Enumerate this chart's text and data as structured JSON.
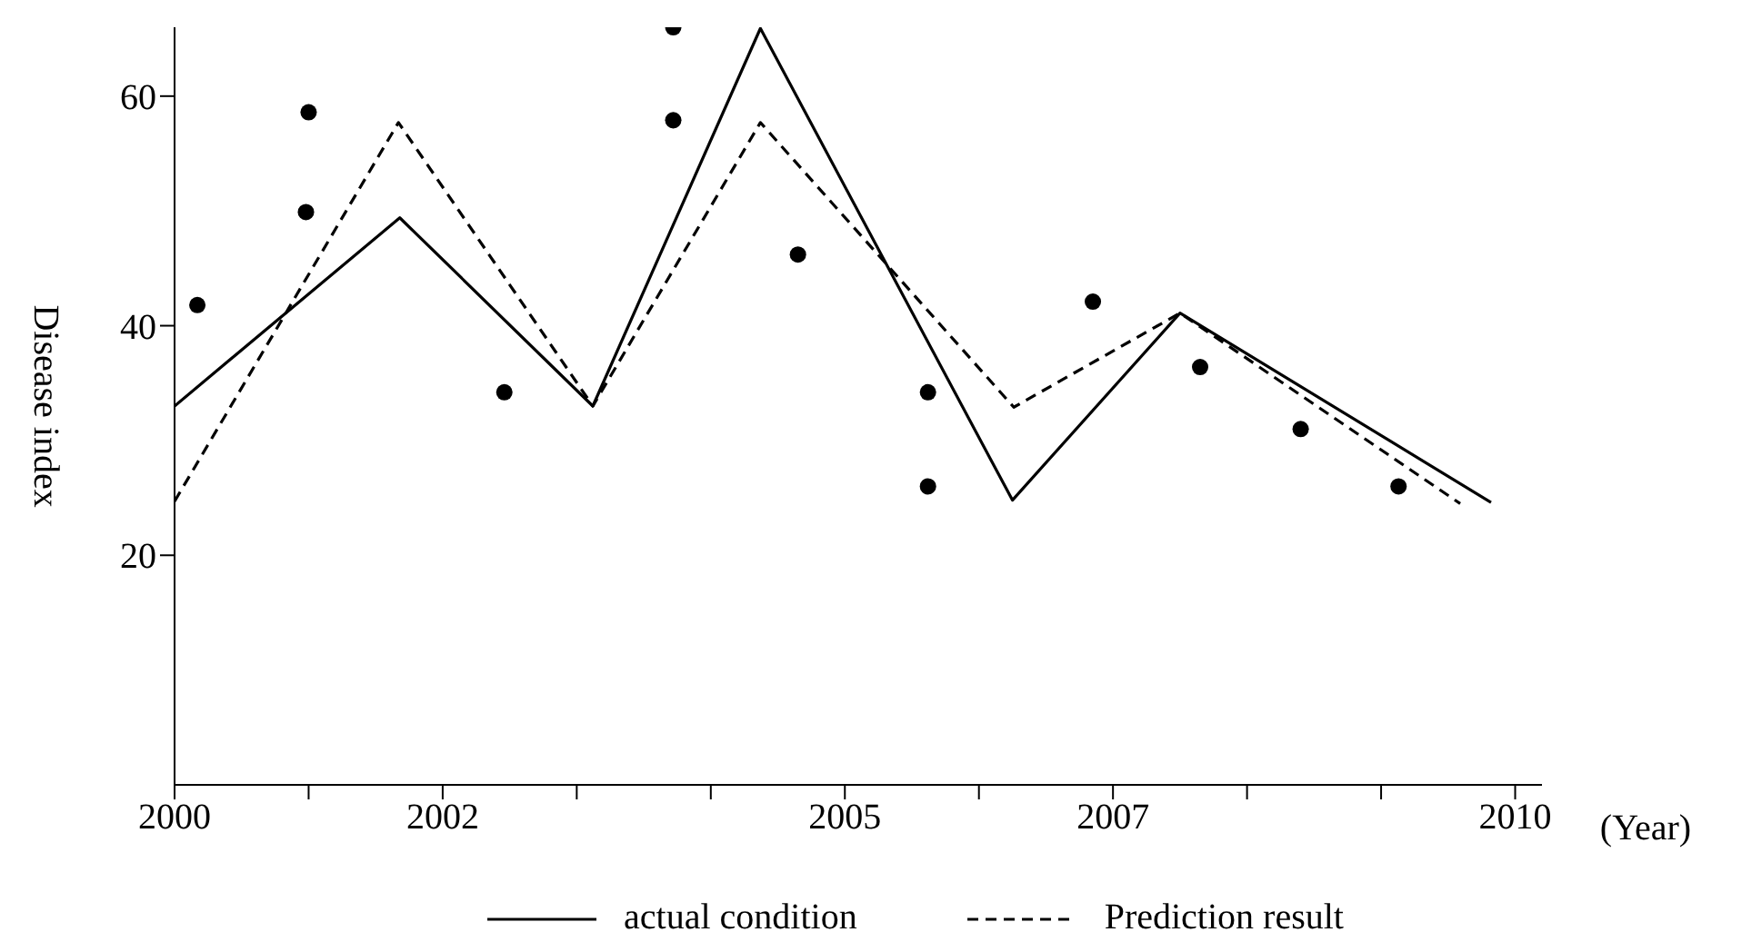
{
  "chart_data": {
    "type": "line",
    "xlabel": "(Year)",
    "ylabel": "Disease index",
    "xlim": [
      2000,
      2010.2
    ],
    "ylim": [
      0,
      66
    ],
    "xticks": [
      2000,
      {
        "value": 2001,
        "label": null
      },
      2002,
      {
        "value": 2003,
        "label": null
      },
      {
        "value": 2004,
        "label": null
      },
      2005,
      {
        "value": 2006,
        "label": null
      },
      2007,
      {
        "value": 2008,
        "label": null
      },
      {
        "value": 2009,
        "label": null
      },
      2010
    ],
    "yticks": [
      20,
      40,
      60
    ],
    "grid": false,
    "legend": "bottom",
    "series": [
      {
        "name": "actual condition",
        "color": "#000000",
        "line_style": "solid",
        "marker": "none",
        "x": [
          2000,
          2001.68,
          2003.12,
          2004.37,
          2006.25,
          2007.5,
          2009.82
        ],
        "values": [
          33,
          49.4,
          33,
          65.9,
          24.8,
          41.1,
          24.6
        ]
      },
      {
        "name": "Prediction result",
        "color": "#000000",
        "line_style": "dashed",
        "marker": "none",
        "x": [
          2000,
          2001.67,
          2003.12,
          2004.37,
          2006.26,
          2007.5,
          2009.59
        ],
        "values": [
          24.7,
          57.7,
          33,
          57.7,
          32.9,
          41.1,
          24.5
        ]
      },
      {
        "type": "scatter",
        "color": "#000000",
        "marker": "circle",
        "x": [
          2000.17,
          2001.0,
          2000.98,
          2002.46,
          2003.72,
          2003.72,
          2004.65,
          2005.62,
          2005.62,
          2006.85,
          2007.65,
          2008.4,
          2009.13
        ],
        "values": [
          41.8,
          58.6,
          49.9,
          34.2,
          66,
          57.9,
          46.2,
          34.2,
          26.0,
          42.1,
          36.4,
          31.0,
          26.0
        ]
      }
    ]
  }
}
